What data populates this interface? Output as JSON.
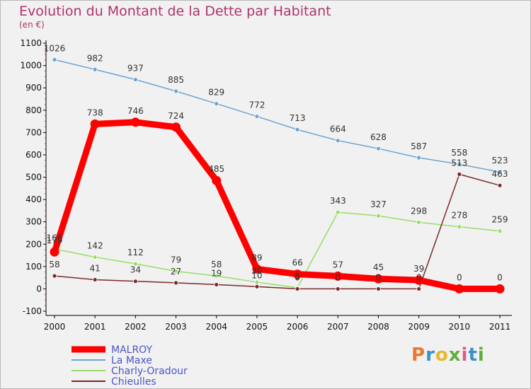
{
  "chart_data": {
    "type": "line",
    "title": "Evolution du Montant de la Dette par Habitant",
    "unit": "(en €)",
    "categories": [
      "2000",
      "2001",
      "2002",
      "2003",
      "2004",
      "2005",
      "2006",
      "2007",
      "2008",
      "2009",
      "2010",
      "2011"
    ],
    "ylim": [
      -100,
      1100
    ],
    "yticks": [
      -100,
      0,
      100,
      200,
      300,
      400,
      500,
      600,
      700,
      800,
      900,
      1000,
      1100
    ],
    "grid": false,
    "legend_position": "bottom-left",
    "series": [
      {
        "name": "MALROY",
        "color": "#ff0000",
        "values": [
          165,
          738,
          746,
          724,
          485,
          89,
          66,
          57,
          45,
          39,
          0,
          0
        ]
      },
      {
        "name": "La Maxe",
        "color": "#6fa3cf",
        "values": [
          1026,
          982,
          937,
          885,
          829,
          772,
          713,
          664,
          628,
          587,
          558,
          523
        ]
      },
      {
        "name": "Charly-Oradour",
        "color": "#99dd66",
        "values": [
          179,
          142,
          112,
          79,
          58,
          30,
          5,
          343,
          327,
          298,
          278,
          259
        ]
      },
      {
        "name": "Chieulles",
        "color": "#7a2a2a",
        "values": [
          58,
          41,
          34,
          27,
          19,
          10,
          0,
          0,
          0,
          0,
          513,
          463
        ]
      }
    ],
    "data_labels": {
      "MALROY": [
        "165",
        "738",
        "746",
        "724",
        "485",
        "89",
        "66",
        "57",
        "45",
        "39",
        "0",
        "0"
      ],
      "La Maxe": [
        "1026",
        "982",
        "937",
        "885",
        "829",
        "772",
        "713",
        "664",
        "628",
        "587",
        "558",
        "523"
      ],
      "Charly-Oradour": [
        "179",
        "142",
        "112",
        "79",
        "58",
        "30",
        "5",
        "343",
        "327",
        "298",
        "278",
        "259"
      ],
      "Chieulles": [
        "58",
        "41",
        "34",
        "27",
        "19",
        "10",
        "0",
        "0",
        "0",
        "0",
        "513",
        "463"
      ]
    }
  },
  "brand": {
    "text": "Proxiti",
    "colors": [
      "#e87a2a",
      "#3a8fd0",
      "#e8b82a",
      "#5fae3a",
      "#e05a8a",
      "#3a8fd0",
      "#5fae3a"
    ]
  }
}
